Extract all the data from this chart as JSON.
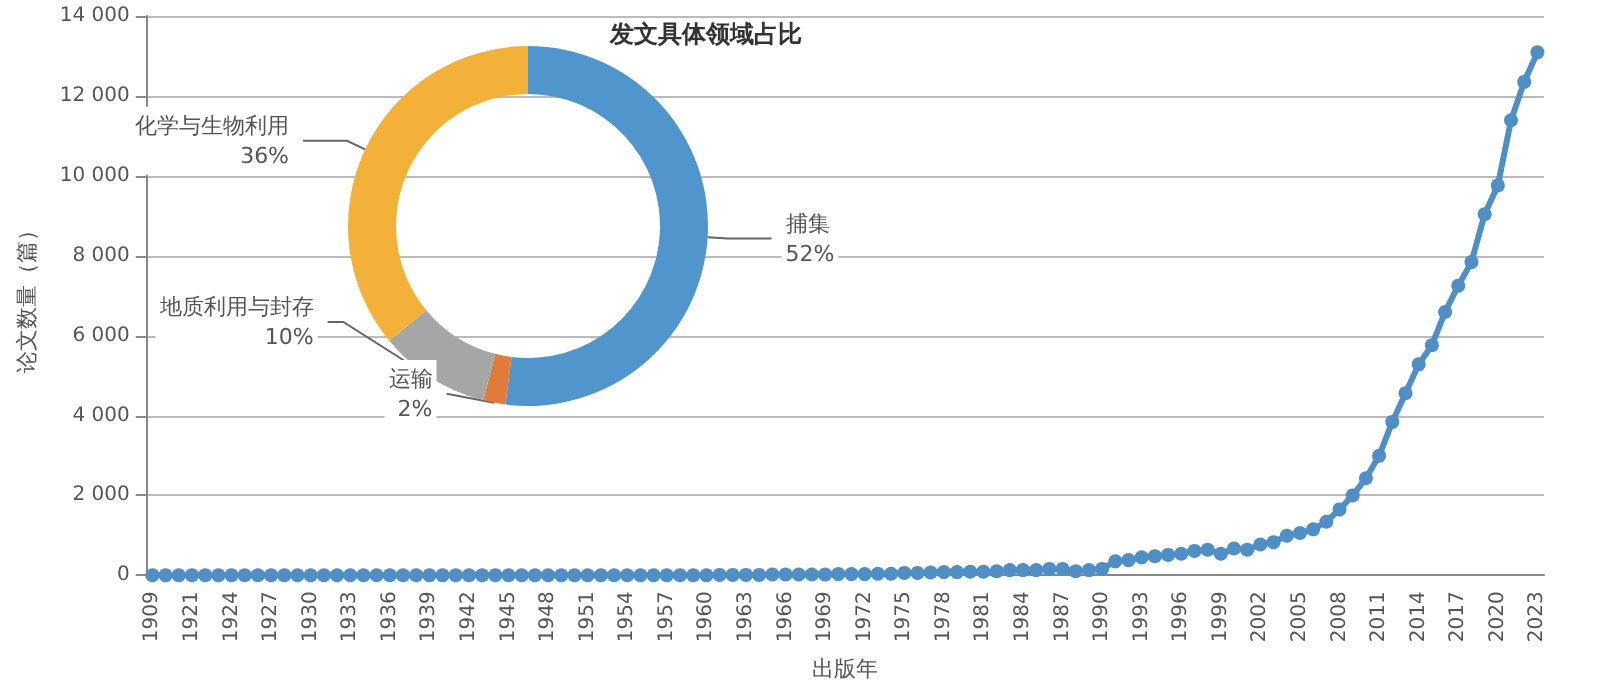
{
  "chart_data": [
    {
      "type": "line",
      "xlabel": "出版年",
      "ylabel": "论文数量（篇）",
      "categories": [
        "1909",
        null,
        null,
        "1921",
        null,
        null,
        "1924",
        null,
        null,
        "1927",
        null,
        null,
        "1930",
        null,
        null,
        "1933",
        null,
        null,
        "1936",
        null,
        null,
        "1939",
        null,
        null,
        "1942",
        null,
        null,
        "1945",
        null,
        null,
        "1948",
        null,
        null,
        "1951",
        null,
        null,
        "1954",
        null,
        null,
        "1957",
        null,
        null,
        "1960",
        null,
        null,
        "1963",
        null,
        null,
        "1966",
        null,
        null,
        "1969",
        null,
        null,
        "1972",
        null,
        null,
        "1975",
        null,
        null,
        "1978",
        null,
        null,
        "1981",
        null,
        null,
        "1984",
        null,
        null,
        "1987",
        null,
        null,
        "1990",
        null,
        null,
        "1993",
        null,
        null,
        "1996",
        null,
        null,
        "1999",
        null,
        null,
        "2002",
        null,
        null,
        "2005",
        null,
        null,
        "2008",
        null,
        null,
        "2011",
        null,
        null,
        "2014",
        null,
        null,
        "2017",
        null,
        null,
        "2020",
        null,
        null,
        "2023"
      ],
      "series": [
        {
          "color": "#4f8fc6",
          "values": [
            0,
            0,
            0,
            0,
            0,
            0,
            0,
            0,
            0,
            0,
            0,
            0,
            0,
            0,
            0,
            0,
            0,
            0,
            0,
            0,
            0,
            0,
            0,
            0,
            0,
            0,
            0,
            0,
            0,
            0,
            0,
            0,
            0,
            0,
            0,
            0,
            0,
            0,
            0,
            0,
            0,
            0,
            0,
            10,
            10,
            10,
            10,
            20,
            20,
            20,
            20,
            20,
            30,
            30,
            30,
            40,
            40,
            60,
            60,
            70,
            80,
            80,
            90,
            90,
            100,
            130,
            130,
            130,
            160,
            160,
            100,
            130,
            160,
            350,
            380,
            450,
            480,
            510,
            540,
            610,
            640,
            540,
            670,
            640,
            770,
            830,
            990,
            1060,
            1150,
            1340,
            1650,
            2000,
            2430,
            2990,
            3840,
            4560,
            5280,
            5760,
            6590,
            7250,
            7840,
            9040,
            9760,
            11390,
            12350,
            13090
          ]
        }
      ],
      "ylim": [
        0,
        14000
      ],
      "yticks": [
        0,
        {
          "value": 2000,
          "label": "2 000"
        },
        {
          "value": 4000,
          "label": "4 000"
        },
        {
          "value": 6000,
          "label": "6 000"
        },
        {
          "value": 8000,
          "label": "8 000"
        },
        {
          "value": 10000,
          "label": "10 000"
        },
        {
          "value": 12000,
          "label": "12 000"
        },
        {
          "value": 14000,
          "label": "14 000"
        }
      ],
      "grid": "y",
      "marker": "circle",
      "line_style": "solid"
    },
    {
      "type": "donut",
      "title": "发文具体领域占比",
      "categories": [
        "捕集",
        "运输",
        "地质利用与封存",
        "化学与生物利用"
      ],
      "values": [
        52,
        2,
        10,
        36
      ],
      "value_labels": [
        "52%",
        "2%",
        "10%",
        "36%"
      ],
      "colors": [
        "#5096cc",
        "#e07b3c",
        "#a6a6a6",
        "#f3b13a"
      ]
    }
  ]
}
